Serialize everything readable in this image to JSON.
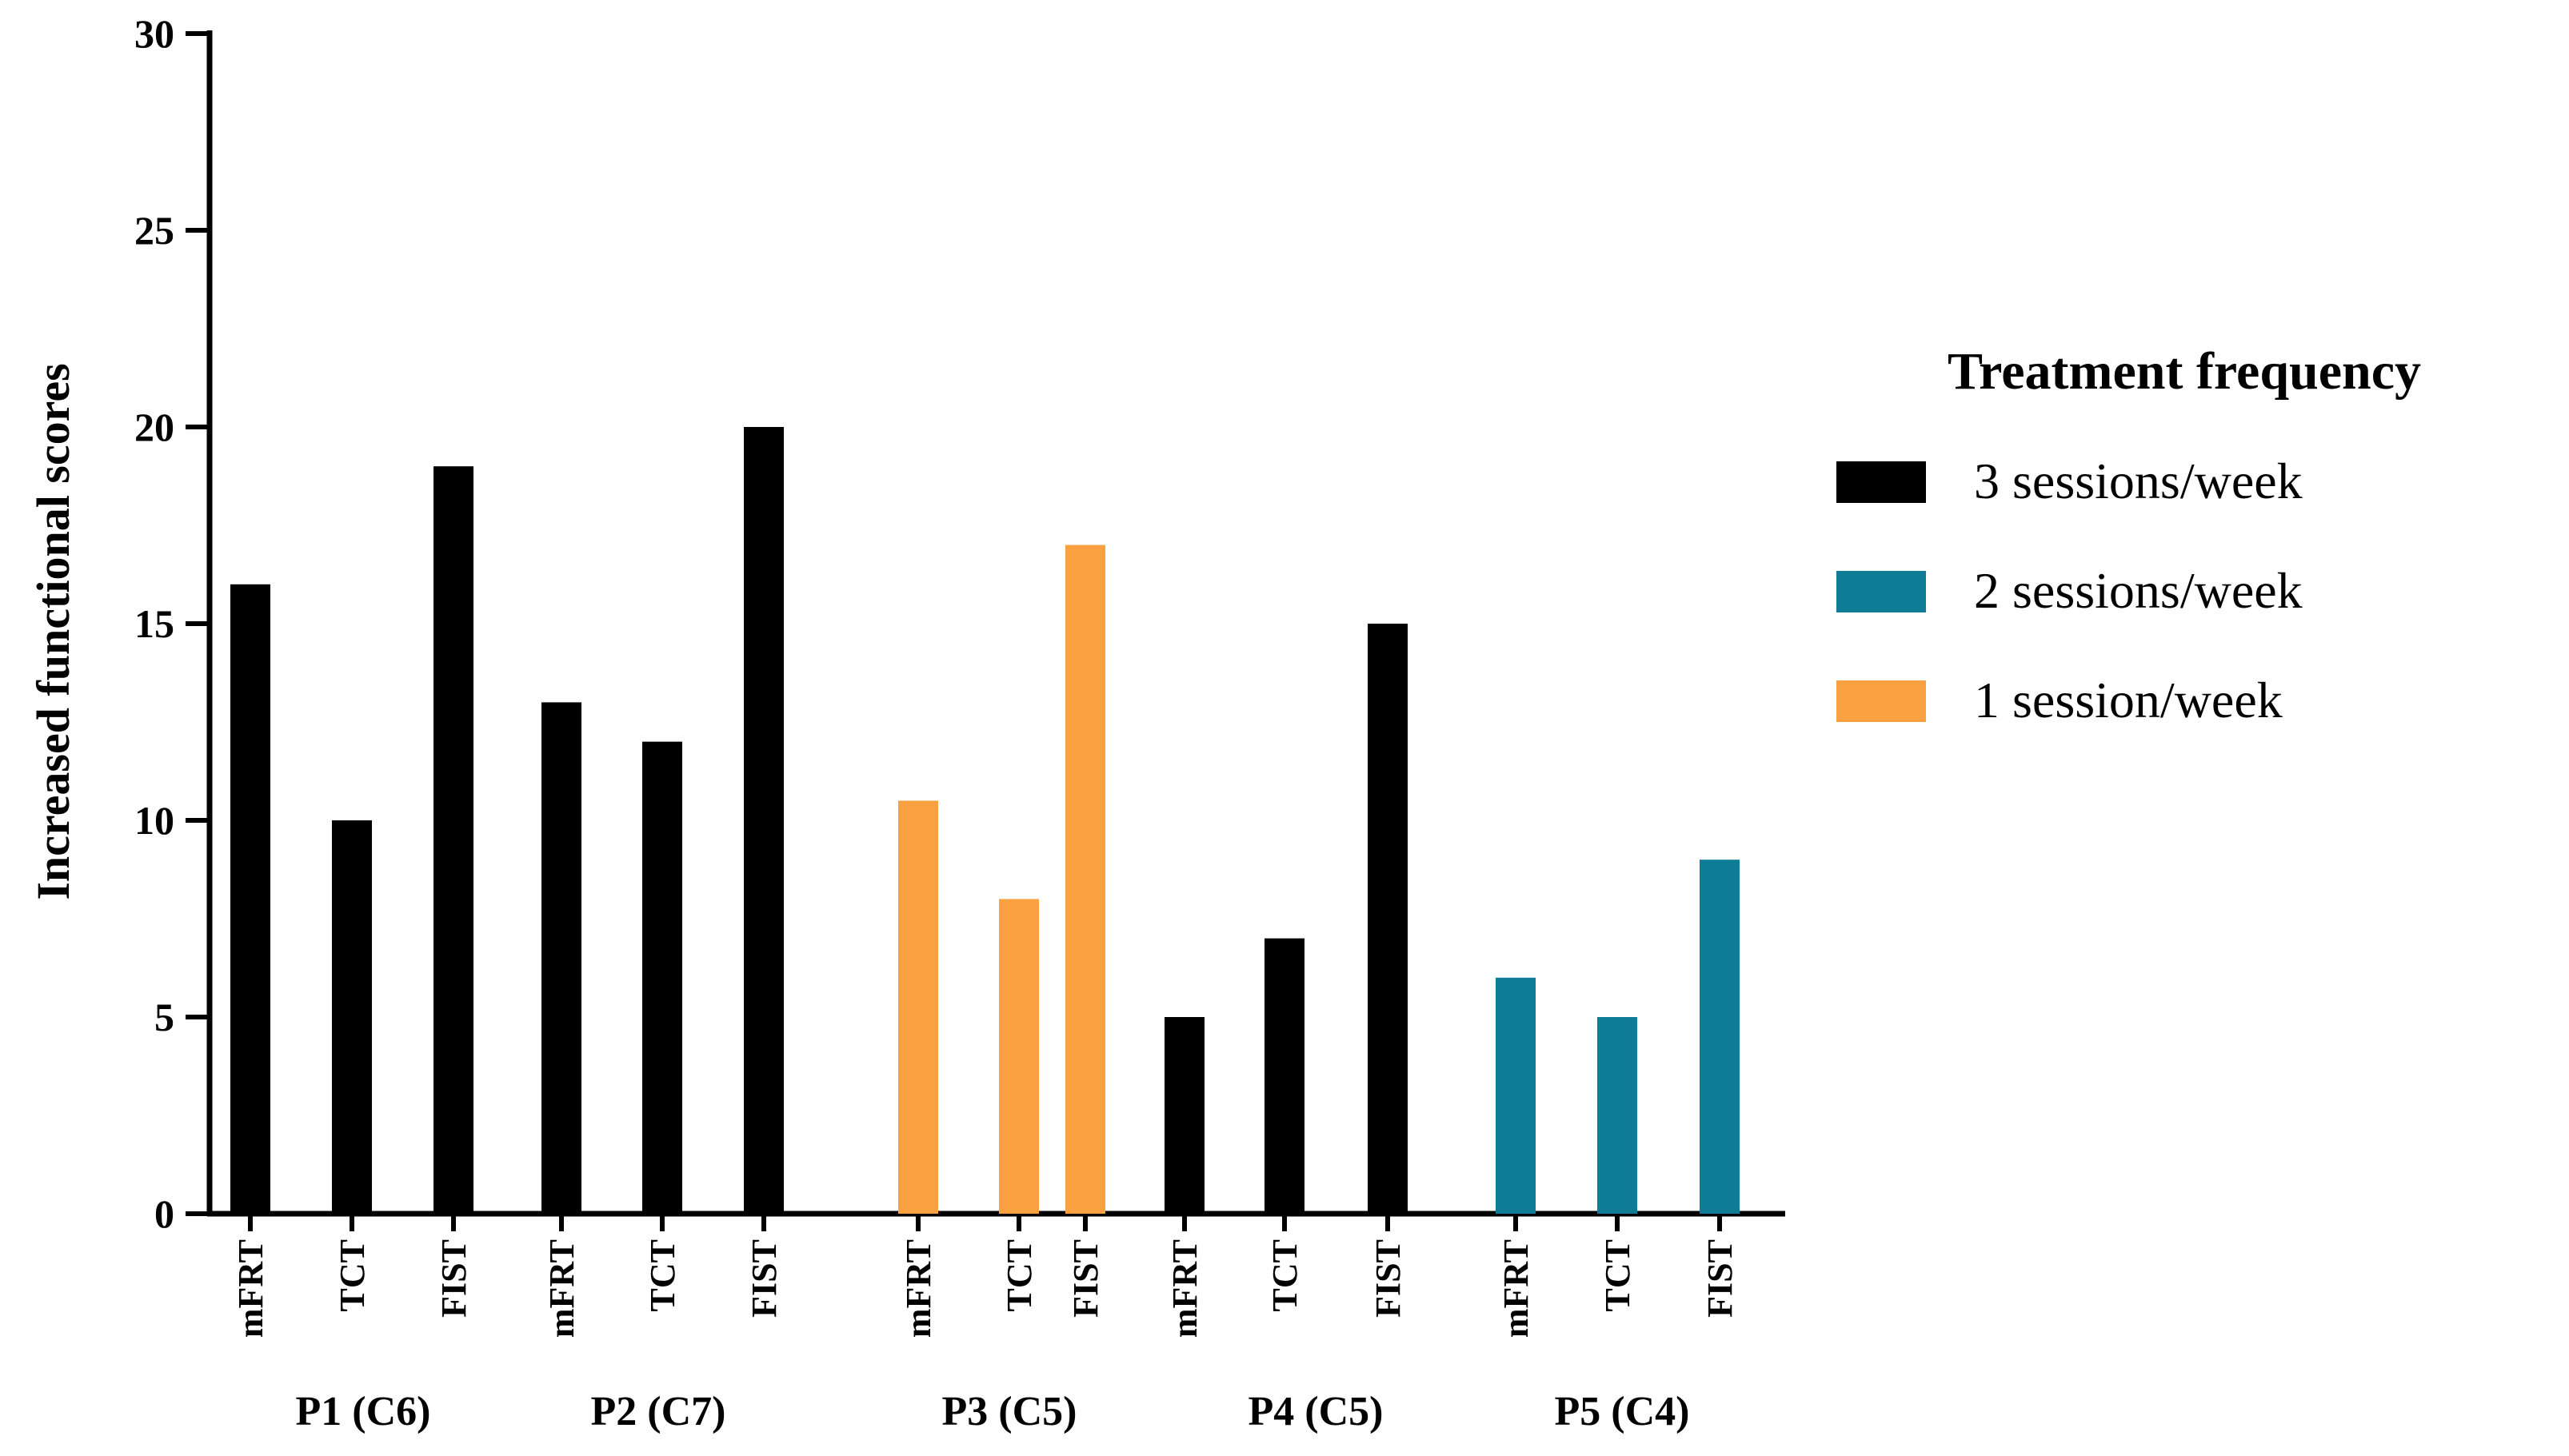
{
  "chart_data": {
    "type": "bar",
    "title": "",
    "xlabel": "",
    "ylabel": "Increased functional scores",
    "ylim": [
      0,
      30
    ],
    "yticks": [
      0,
      5,
      10,
      15,
      20,
      25,
      30
    ],
    "grid": false,
    "legend": {
      "title": "Treatment frequency",
      "placement": "right",
      "entries": [
        {
          "label": "3 sessions/week",
          "color": "#000000"
        },
        {
          "label": "2 sessions/week",
          "color": "#0e7c95"
        },
        {
          "label": "1 session/week",
          "color": "#f9a040"
        }
      ]
    },
    "groups": [
      {
        "label": "P1 (C6)",
        "frequency": "3 sessions/week",
        "color": "#000000",
        "bars": [
          {
            "label": "mFRT",
            "value": 16
          },
          {
            "label": "TCT",
            "value": 10
          },
          {
            "label": "FIST",
            "value": 19
          }
        ]
      },
      {
        "label": "P2 (C7)",
        "frequency": "3 sessions/week",
        "color": "#000000",
        "bars": [
          {
            "label": "mFRT",
            "value": 13
          },
          {
            "label": "TCT",
            "value": 12
          },
          {
            "label": "FIST",
            "value": 20
          }
        ]
      },
      {
        "label": "P3 (C5)",
        "frequency": "1 session/week",
        "color": "#f9a040",
        "bars": [
          {
            "label": "mFRT",
            "value": 10.5
          },
          {
            "label": "TCT",
            "value": 8
          },
          {
            "label": "FIST",
            "value": 17
          }
        ]
      },
      {
        "label": "P4 (C5)",
        "frequency": "3 sessions/week",
        "color": "#000000",
        "bars": [
          {
            "label": "mFRT",
            "value": 5
          },
          {
            "label": "TCT",
            "value": 7
          },
          {
            "label": "FIST",
            "value": 15
          }
        ]
      },
      {
        "label": "P5 (C4)",
        "frequency": "2 sessions/week",
        "color": "#0e7c95",
        "bars": [
          {
            "label": "mFRT",
            "value": 6
          },
          {
            "label": "TCT",
            "value": 5
          },
          {
            "label": "FIST",
            "value": 9
          }
        ]
      }
    ]
  }
}
